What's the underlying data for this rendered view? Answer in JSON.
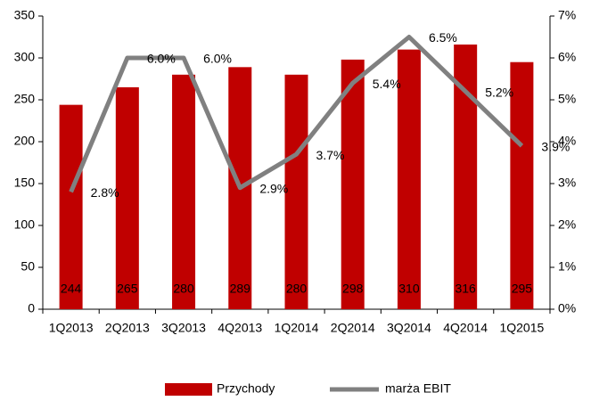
{
  "chart_data": {
    "type": "bar",
    "categories": [
      "1Q2013",
      "2Q2013",
      "3Q2013",
      "4Q2013",
      "1Q2014",
      "2Q2014",
      "3Q2014",
      "4Q2014",
      "1Q2015"
    ],
    "series": [
      {
        "name": "Przychody",
        "color": "#c00000",
        "type": "bar",
        "values": [
          244,
          265,
          280,
          289,
          280,
          298,
          310,
          316,
          295
        ]
      },
      {
        "name": "marża EBIT",
        "color": "#808080",
        "type": "line",
        "axis": "y2",
        "values": [
          2.8,
          6.0,
          6.0,
          2.9,
          3.7,
          5.4,
          6.5,
          5.2,
          3.9
        ],
        "value_labels": [
          "2.8%",
          "6.0%",
          "6.0%",
          "2.9%",
          "3.7%",
          "5.4%",
          "6.5%",
          "5.2%",
          "3.9%"
        ]
      }
    ],
    "ylim": [
      0,
      350
    ],
    "yticks": [
      0,
      50,
      100,
      150,
      200,
      250,
      300,
      350
    ],
    "y2lim": [
      0,
      7
    ],
    "y2ticks": [
      {
        "value": 0,
        "label": "0%"
      },
      {
        "value": 1,
        "label": "1%"
      },
      {
        "value": 2,
        "label": "2%"
      },
      {
        "value": 3,
        "label": "3%"
      },
      {
        "value": 4,
        "label": "4%"
      },
      {
        "value": 5,
        "label": "5%"
      },
      {
        "value": 6,
        "label": "6%"
      },
      {
        "value": 7,
        "label": "7%"
      }
    ],
    "grid": false,
    "legend": "bottom"
  }
}
